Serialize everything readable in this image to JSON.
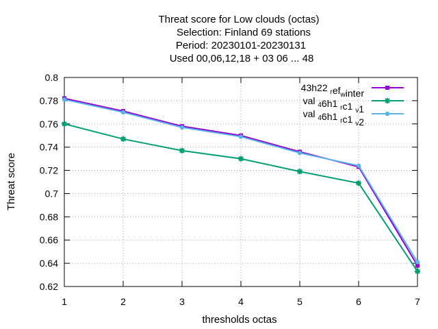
{
  "chart_data": {
    "type": "line",
    "title_lines": [
      "Threat score  for Low clouds (octas)",
      "Selection: Finland      69 stations",
      "Period: 20230101-20230131",
      "Used  00,06,12,18  + 03 06 ... 48"
    ],
    "xlabel": "thresholds octas",
    "ylabel": "Threat score",
    "x": [
      1,
      2,
      3,
      4,
      5,
      6,
      7
    ],
    "xlim": [
      1,
      7
    ],
    "ylim": [
      0.62,
      0.8
    ],
    "yticks": [
      "0.62",
      "0.64",
      "0.66",
      "0.68",
      "0.7",
      "0.72",
      "0.74",
      "0.76",
      "0.78",
      "0.8"
    ],
    "xticks": [
      "1",
      "2",
      "3",
      "4",
      "5",
      "6",
      "7"
    ],
    "grid": true,
    "legend_position": "top-right",
    "series": [
      {
        "name": "43h22_ref_winter",
        "legend_parts": [
          [
            "43h22 ",
            ""
          ],
          [
            "r",
            "sub"
          ],
          [
            "ef",
            ""
          ],
          [
            "w",
            "sub"
          ],
          [
            "inter",
            ""
          ]
        ],
        "color": "#9400d3",
        "marker": "square",
        "values": [
          0.782,
          0.771,
          0.758,
          0.75,
          0.736,
          0.723,
          0.638
        ]
      },
      {
        "name": "val_46h1_rc1_v1",
        "legend_parts": [
          [
            "val ",
            ""
          ],
          [
            "4",
            "sub"
          ],
          [
            "6h1 ",
            ""
          ],
          [
            "r",
            "sub"
          ],
          [
            "c1 ",
            ""
          ],
          [
            "v",
            "sub"
          ],
          [
            "1",
            ""
          ]
        ],
        "color": "#009e73",
        "marker": "star",
        "values": [
          0.76,
          0.747,
          0.737,
          0.73,
          0.719,
          0.709,
          0.633
        ]
      },
      {
        "name": "val_46h1_rc1_v2",
        "legend_parts": [
          [
            "val ",
            ""
          ],
          [
            "4",
            "sub"
          ],
          [
            "6h1 ",
            ""
          ],
          [
            "r",
            "sub"
          ],
          [
            "c1 ",
            ""
          ],
          [
            "v",
            "sub"
          ],
          [
            "2",
            ""
          ]
        ],
        "color": "#56b4e9",
        "marker": "circle",
        "values": [
          0.781,
          0.77,
          0.757,
          0.749,
          0.735,
          0.724,
          0.641
        ]
      }
    ]
  }
}
